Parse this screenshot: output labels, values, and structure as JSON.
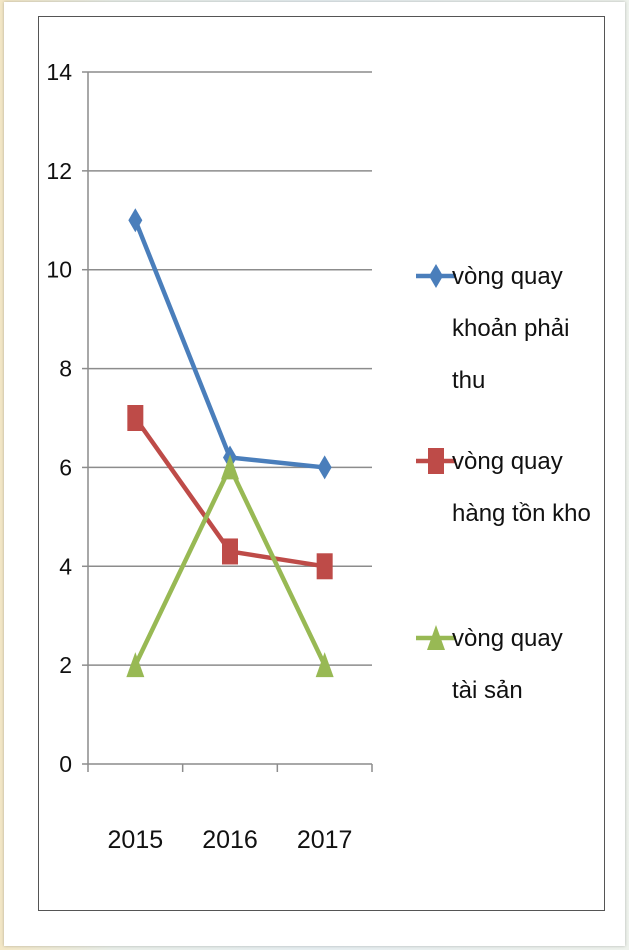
{
  "chart_data": {
    "type": "line",
    "categories": [
      "2015",
      "2016",
      "2017"
    ],
    "ylim": [
      0,
      14
    ],
    "yticks": [
      0,
      2,
      4,
      6,
      8,
      10,
      12,
      14
    ],
    "grid": true,
    "legend_position": "right",
    "series": [
      {
        "name": "vòng quay khoản phải thu",
        "legend_lines": [
          "vòng quay",
          "khoản phải",
          "thu"
        ],
        "values": [
          11,
          6.2,
          6
        ],
        "color": "#4a7ebb",
        "marker": "diamond"
      },
      {
        "name": "vòng quay hàng tồn kho",
        "legend_lines": [
          "vòng quay",
          "hàng tồn kho"
        ],
        "values": [
          7,
          4.3,
          4
        ],
        "color": "#be4b48",
        "marker": "square"
      },
      {
        "name": "vòng quay tài sản",
        "legend_lines": [
          "vòng quay",
          "tài sản"
        ],
        "values": [
          2,
          6,
          2
        ],
        "color": "#98b954",
        "marker": "triangle"
      }
    ]
  }
}
